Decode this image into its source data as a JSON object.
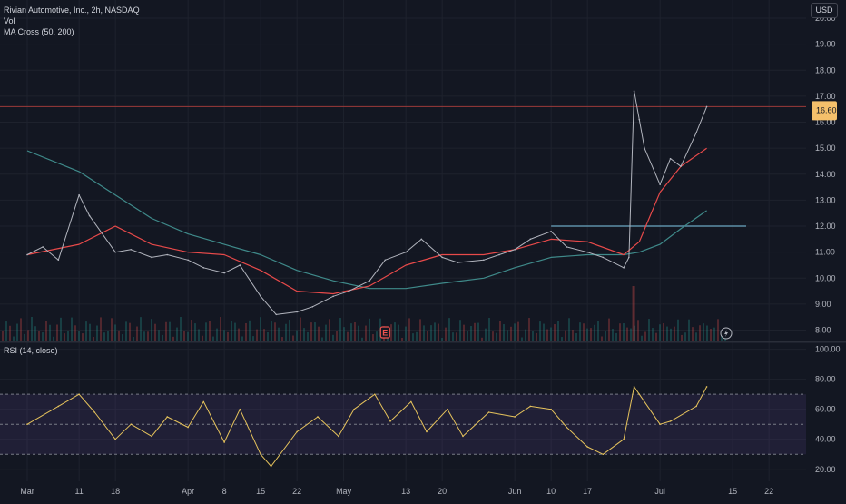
{
  "header": {
    "symbol_line": "Rivian Automotive, Inc., 2h, NASDAQ",
    "vol_label": "Vol",
    "ma_label": "MA Cross (50, 200)",
    "rsi_label": "RSI (14, close)",
    "currency": "USD"
  },
  "colors": {
    "background": "#131722",
    "grid": "#1e222d",
    "price_line": "#b2b5be",
    "ma50": "#e84a4a",
    "ma200": "#3f8a8a",
    "rsi": "#e6c35c",
    "rsi_band": "#7e57c2",
    "level_line": "#9b3a3a",
    "price_tag": "#f5c06b"
  },
  "chart_data": [
    {
      "type": "line",
      "name": "price",
      "x": [
        "Mar 1",
        "Mar 4",
        "Mar 7",
        "Mar 11",
        "Mar 13",
        "Mar 18",
        "Mar 21",
        "Mar 25",
        "Mar 28",
        "Apr 1",
        "Apr 4",
        "Apr 8",
        "Apr 11",
        "Apr 15",
        "Apr 18",
        "Apr 22",
        "Apr 25",
        "Apr 29",
        "May 2",
        "May 6",
        "May 9",
        "May 13",
        "May 16",
        "May 20",
        "May 23",
        "May 28",
        "May 31",
        "Jun 3",
        "Jun 6",
        "Jun 10",
        "Jun 13",
        "Jun 17",
        "Jun 20",
        "Jun 24",
        "Jun 25",
        "Jun 26",
        "Jun 27",
        "Jun 28",
        "Jul 1",
        "Jul 3",
        "Jul 5",
        "Jul 8",
        "Jul 10"
      ],
      "y": [
        10.9,
        11.2,
        10.7,
        13.2,
        12.4,
        11.0,
        11.1,
        10.8,
        10.9,
        10.7,
        10.4,
        10.2,
        10.5,
        9.3,
        8.6,
        8.7,
        8.9,
        9.3,
        9.5,
        9.9,
        10.7,
        11.0,
        11.5,
        10.8,
        10.6,
        10.7,
        10.9,
        11.1,
        11.5,
        11.8,
        11.2,
        11.0,
        10.8,
        10.4,
        10.8,
        17.2,
        16.1,
        15.0,
        13.6,
        14.6,
        14.3,
        15.6,
        16.6
      ],
      "ylim": [
        7.6,
        20.7
      ],
      "yticks": [
        "20.00",
        "19.00",
        "18.00",
        "17.00",
        "16.00",
        "15.00",
        "14.00",
        "13.00",
        "12.00",
        "11.00",
        "10.00",
        "9.00",
        "8.00"
      ],
      "price_tag": "16.60"
    },
    {
      "type": "line",
      "name": "ma50",
      "x": [
        "Mar 1",
        "Mar 11",
        "Mar 18",
        "Mar 25",
        "Apr 1",
        "Apr 8",
        "Apr 15",
        "Apr 22",
        "Apr 29",
        "May 6",
        "May 13",
        "May 20",
        "May 28",
        "Jun 3",
        "Jun 10",
        "Jun 17",
        "Jun 24",
        "Jun 27",
        "Jul 1",
        "Jul 5",
        "Jul 10"
      ],
      "y": [
        10.9,
        11.3,
        12.0,
        11.3,
        11.0,
        10.9,
        10.3,
        9.5,
        9.4,
        9.7,
        10.5,
        10.9,
        10.9,
        11.1,
        11.5,
        11.4,
        10.9,
        11.4,
        13.3,
        14.3,
        15.0
      ]
    },
    {
      "type": "line",
      "name": "ma200",
      "x": [
        "Mar 1",
        "Mar 11",
        "Mar 18",
        "Mar 25",
        "Apr 1",
        "Apr 8",
        "Apr 15",
        "Apr 22",
        "Apr 29",
        "May 6",
        "May 13",
        "May 20",
        "May 28",
        "Jun 3",
        "Jun 10",
        "Jun 17",
        "Jun 24",
        "Jun 27",
        "Jul 1",
        "Jul 5",
        "Jul 10"
      ],
      "y": [
        14.9,
        14.1,
        13.2,
        12.3,
        11.7,
        11.3,
        10.9,
        10.3,
        9.9,
        9.6,
        9.6,
        9.8,
        10.0,
        10.4,
        10.8,
        10.9,
        10.9,
        11.0,
        11.3,
        11.9,
        12.6
      ]
    },
    {
      "type": "line",
      "name": "rsi",
      "x": [
        "Mar 1",
        "Mar 7",
        "Mar 11",
        "Mar 14",
        "Mar 18",
        "Mar 21",
        "Mar 25",
        "Mar 28",
        "Apr 1",
        "Apr 4",
        "Apr 8",
        "Apr 11",
        "Apr 15",
        "Apr 17",
        "Apr 22",
        "Apr 26",
        "Apr 30",
        "May 3",
        "May 7",
        "May 10",
        "May 14",
        "May 17",
        "May 21",
        "May 24",
        "May 29",
        "Jun 3",
        "Jun 6",
        "Jun 10",
        "Jun 13",
        "Jun 17",
        "Jun 20",
        "Jun 24",
        "Jun 26",
        "Jun 27",
        "Jul 1",
        "Jul 3",
        "Jul 8",
        "Jul 10"
      ],
      "y": [
        50,
        62,
        70,
        58,
        40,
        50,
        42,
        55,
        48,
        65,
        38,
        60,
        30,
        22,
        45,
        55,
        42,
        60,
        70,
        52,
        65,
        45,
        60,
        42,
        58,
        55,
        62,
        60,
        48,
        35,
        30,
        40,
        75,
        70,
        50,
        52,
        62,
        75
      ],
      "ylim": [
        12,
        104
      ],
      "yticks": [
        "100.00",
        "80.00",
        "60.00",
        "40.00",
        "20.00"
      ],
      "bands": [
        70,
        50,
        30
      ]
    }
  ],
  "xaxis": {
    "ticks": [
      "Mar",
      "11",
      "18",
      "Apr",
      "8",
      "15",
      "22",
      "May",
      "13",
      "20",
      "Jun",
      "10",
      "17",
      "Jul",
      "15",
      "22"
    ],
    "tick_dates": [
      "Mar 1",
      "Mar 11",
      "Mar 18",
      "Apr 1",
      "Apr 8",
      "Apr 15",
      "Apr 22",
      "May 1",
      "May 13",
      "May 20",
      "Jun 3",
      "Jun 10",
      "Jun 17",
      "Jul 1",
      "Jul 15",
      "Jul 22"
    ]
  },
  "levels": {
    "horizontal_level": 16.6,
    "resistance": 12.0
  },
  "markers": {
    "earnings": "E",
    "dividend_icon": "lightning-icon"
  }
}
